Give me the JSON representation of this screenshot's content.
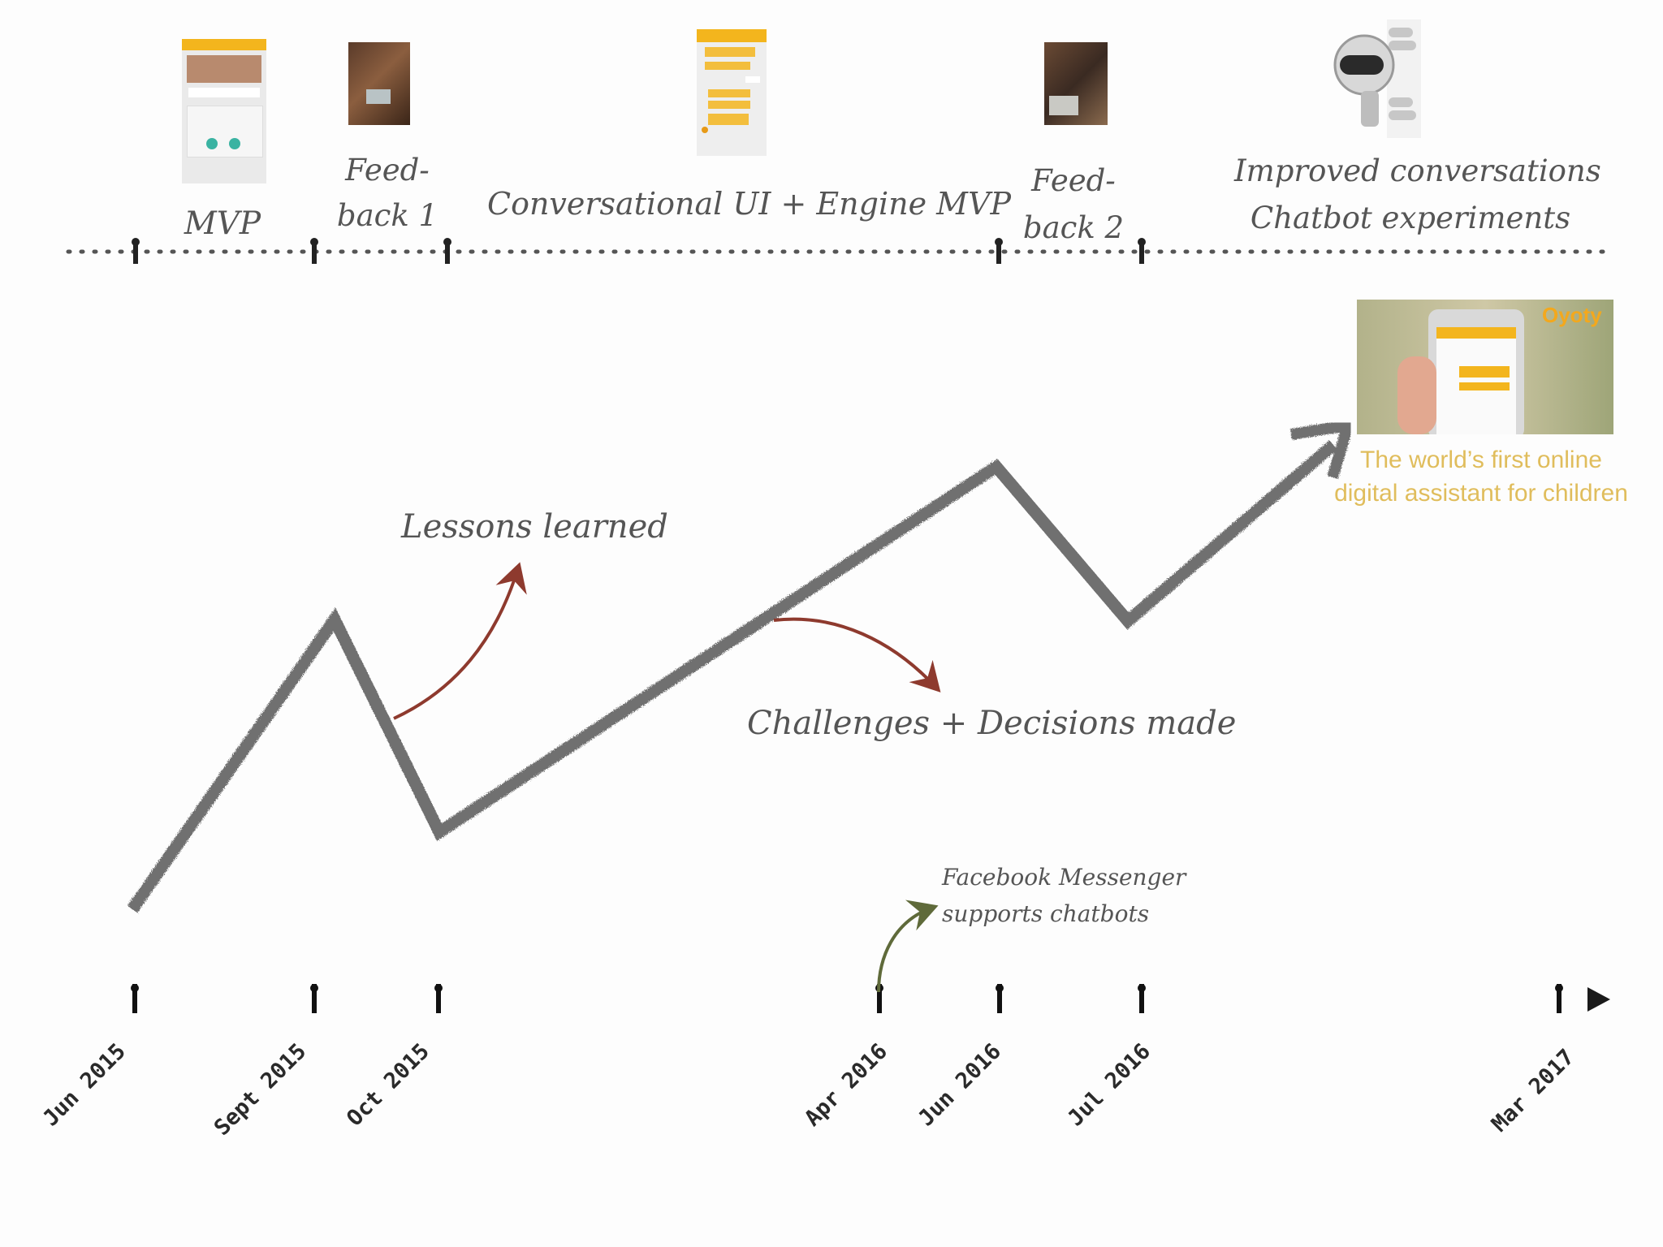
{
  "phases": [
    {
      "id": "mvp",
      "lines": [
        "MVP"
      ]
    },
    {
      "id": "feedback1",
      "lines": [
        "Feed-",
        "back 1"
      ]
    },
    {
      "id": "conversational",
      "lines": [
        "Conversational UI + Engine MVP"
      ]
    },
    {
      "id": "feedback2",
      "lines": [
        "Feed-",
        "back 2"
      ]
    },
    {
      "id": "improved",
      "lines": [
        "Improved conversations",
        "Chatbot experiments"
      ]
    }
  ],
  "annotations": {
    "lessons": "Lessons learned",
    "challenges": "Challenges + Decisions made",
    "facebook": [
      "Facebook Messenger",
      "supports chatbots"
    ]
  },
  "product": {
    "brand": "Oyoty",
    "tagline": [
      "The world’s first online",
      "digital assistant for children"
    ]
  },
  "timeline": {
    "dates": [
      "Jun 2015",
      "Sept 2015",
      "Oct 2015",
      "Apr 2016",
      "Jun 2016",
      "Jul 2016",
      "Mar 2017"
    ]
  },
  "colors": {
    "line": "#6f6f6f",
    "annotation_arrow": "#8e3a2e",
    "facebook_arrow": "#5f6a3a",
    "tagline": "#e0bd5c",
    "app_yellow": "#f3b51d",
    "axis": "#1a1a1a"
  },
  "icons": [
    "phone-screenshot-icon",
    "team-photo-icon",
    "chat-screenshot-icon",
    "robot-icon",
    "hand-phone-photo-icon"
  ]
}
